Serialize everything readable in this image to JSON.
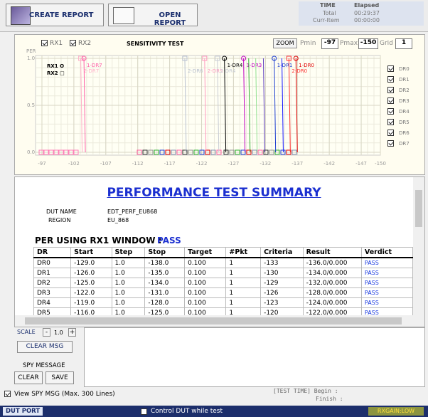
{
  "toolbar": {
    "create_report": "CREATE REPORT",
    "open_report": "OPEN REPORT"
  },
  "time_panel": {
    "header": "TIME",
    "elapsed_header": "Elapsed",
    "total_label": "Total",
    "total": "00:29:37",
    "curr_item_label": "Curr-Item",
    "curr_item": "00:00:00"
  },
  "chart_panel": {
    "rx1_checkbox": "RX1",
    "rx2_checkbox": "RX2",
    "zoom": "ZOOM",
    "pmin_label": "Pmin",
    "pmin": "-97",
    "pmax_label": "Pmax",
    "pmax": "-150",
    "grid_label": "Grid",
    "grid": "1",
    "dr_checkboxes": [
      "DR0",
      "DR1",
      "DR2",
      "DR3",
      "DR4",
      "DR5",
      "DR6",
      "DR7"
    ],
    "chart": {
      "type": "line",
      "title": "SENSITIVITY TEST",
      "y_label": "PER",
      "legend": [
        "RX1 O",
        "RX2 □"
      ],
      "xlim": [
        -96,
        -150
      ],
      "xticks": [
        -97,
        -102,
        -107,
        -112,
        -117,
        -122,
        -127,
        -132,
        -137,
        -142,
        -147,
        -150
      ],
      "ylim": [
        0,
        1
      ],
      "yticks": [
        {
          "value": 0,
          "label": "0.0"
        },
        {
          "value": 0.5,
          "label": "0.5"
        },
        {
          "value": 1,
          "label": "1.0"
        }
      ],
      "grid": true,
      "curves": [
        {
          "label": "2-DR7",
          "x": -103.3,
          "color": "#ffb0c8"
        },
        {
          "label": "1-DR7",
          "x": -103.8,
          "color": "#ff5fa8"
        },
        {
          "label": "2-DR6",
          "x": -119.6,
          "color": "#b8c0d0"
        },
        {
          "label": "2-DR5",
          "x": -122.7,
          "color": "#ff9ac0"
        },
        {
          "label": "2-DR4",
          "x": -124.7,
          "color": "#c8ccd4"
        },
        {
          "label": "1-DR4",
          "x": -125.8,
          "color": "#000000"
        },
        {
          "label": "1-DR3",
          "x": -128.8,
          "color": "#c000c0"
        },
        {
          "x": -129.6,
          "color": "#30b030"
        },
        {
          "x": -130.7,
          "color": "#90e090"
        },
        {
          "x": -131.9,
          "color": "#6040c0"
        },
        {
          "label": "1-DR1",
          "x": -133.6,
          "color": "#2040d0"
        },
        {
          "x": -134.8,
          "color": "#1a1aff"
        },
        {
          "label": "2-DR0",
          "x": -135.9,
          "color": "#ff3030"
        },
        {
          "label": "1-DR0",
          "x": -137,
          "color": "#e00000"
        }
      ]
    }
  },
  "report": {
    "title": "PERFORMANCE TEST SUMMARY",
    "dut_name_label": "DUT NAME",
    "dut_name": "EDT_PERF_EU868",
    "region_label": "REGION",
    "region": "EU_868",
    "section": "PER USING RX1 WINDOW  :",
    "section_verdict": "PASS",
    "table": {
      "headers": [
        "DR",
        "Start",
        "Step",
        "Stop",
        "Target",
        "#Pkt",
        "Criteria",
        "Result",
        "Verdict"
      ],
      "rows": [
        [
          "DR0",
          "-129.0",
          "1.0",
          "-138.0",
          "0.100",
          "1",
          "-133",
          "-136.0/0.000",
          "PASS"
        ],
        [
          "DR1",
          "-126.0",
          "1.0",
          "-135.0",
          "0.100",
          "1",
          "-130",
          "-134.0/0.000",
          "PASS"
        ],
        [
          "DR2",
          "-125.0",
          "1.0",
          "-134.0",
          "0.100",
          "1",
          "-129",
          "-132.0/0.000",
          "PASS"
        ],
        [
          "DR3",
          "-122.0",
          "1.0",
          "-131.0",
          "0.100",
          "1",
          "-126",
          "-128.0/0.000",
          "PASS"
        ],
        [
          "DR4",
          "-119.0",
          "1.0",
          "-128.0",
          "0.100",
          "1",
          "-123",
          "-124.0/0.000",
          "PASS"
        ],
        [
          "DR5",
          "-116.0",
          "1.0",
          "-125.0",
          "0.100",
          "1",
          "-120",
          "-122.0/0.000",
          "PASS"
        ]
      ]
    }
  },
  "controls": {
    "scale_label": "SCALE",
    "minus": "-",
    "scale": "1.0",
    "plus": "+",
    "clear_msg": "CLEAR MSG",
    "spy_message": "SPY MESSAGE",
    "clear": "CLEAR",
    "save": "SAVE",
    "view_spy": "View SPY MSG (Max. 300 Lines)",
    "test_time_begin": "[TEST TIME] Begin  :",
    "test_time_finish": "Finish :"
  },
  "status": {
    "dut_port": "DUT PORT",
    "control_dut": "Control DUT while test",
    "rxgain": "RXGAIN:LOW"
  }
}
